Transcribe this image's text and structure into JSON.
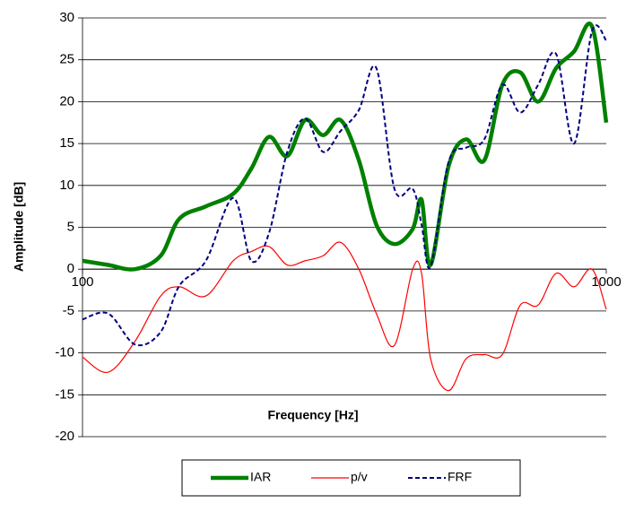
{
  "chart_data": {
    "type": "line",
    "x_label": "Frequency [Hz]",
    "y_label": "Amplitude [dB]",
    "xscale": "log",
    "xlim": [
      100,
      1000
    ],
    "xticks": [
      100,
      1000
    ],
    "ylim": [
      -20,
      30
    ],
    "yticks": [
      -20,
      -15,
      -10,
      -5,
      0,
      5,
      10,
      15,
      20,
      25,
      30
    ],
    "grid": true,
    "legend": "bottom",
    "x": [
      100,
      112,
      126,
      141,
      153,
      172,
      194,
      210,
      227,
      246,
      266,
      288,
      311,
      337,
      364,
      394,
      427,
      444,
      462,
      500,
      540,
      585,
      633,
      685,
      741,
      802,
      868,
      939,
      1000
    ],
    "series": [
      {
        "name": "IAR",
        "color": "#008000",
        "style": "solid-thick",
        "values": [
          1.0,
          0.5,
          0,
          1.6,
          6,
          7.5,
          9,
          12,
          15.8,
          13.5,
          17.8,
          16,
          17.8,
          13,
          5.3,
          3,
          4.8,
          8.3,
          0.5,
          12.3,
          15.5,
          13,
          22,
          23.5,
          20,
          24,
          26,
          29,
          17.5
        ]
      },
      {
        "name": "p/v",
        "color": "#ff0000",
        "style": "solid-thin",
        "values": [
          -10.5,
          -12.3,
          -8.6,
          -3.2,
          -2.1,
          -3.2,
          1,
          2.1,
          2.7,
          0.5,
          1,
          1.6,
          3.2,
          0,
          -5.3,
          -9.1,
          0,
          -0.5,
          -10.7,
          -14.5,
          -10.7,
          -10.2,
          -10.2,
          -4.3,
          -4.3,
          -0.5,
          -2.1,
          0,
          -4.8
        ]
      },
      {
        "name": "FRF",
        "color": "#000080",
        "style": "dashed",
        "values": [
          -6,
          -5.3,
          -9,
          -7.5,
          -2,
          1,
          8.5,
          1,
          4.3,
          14,
          18,
          14,
          16.5,
          19,
          24,
          9.6,
          9.6,
          5.3,
          0.3,
          12.8,
          14.5,
          15.5,
          22,
          18.7,
          22,
          25.7,
          15,
          28.4,
          27.3
        ]
      }
    ]
  }
}
